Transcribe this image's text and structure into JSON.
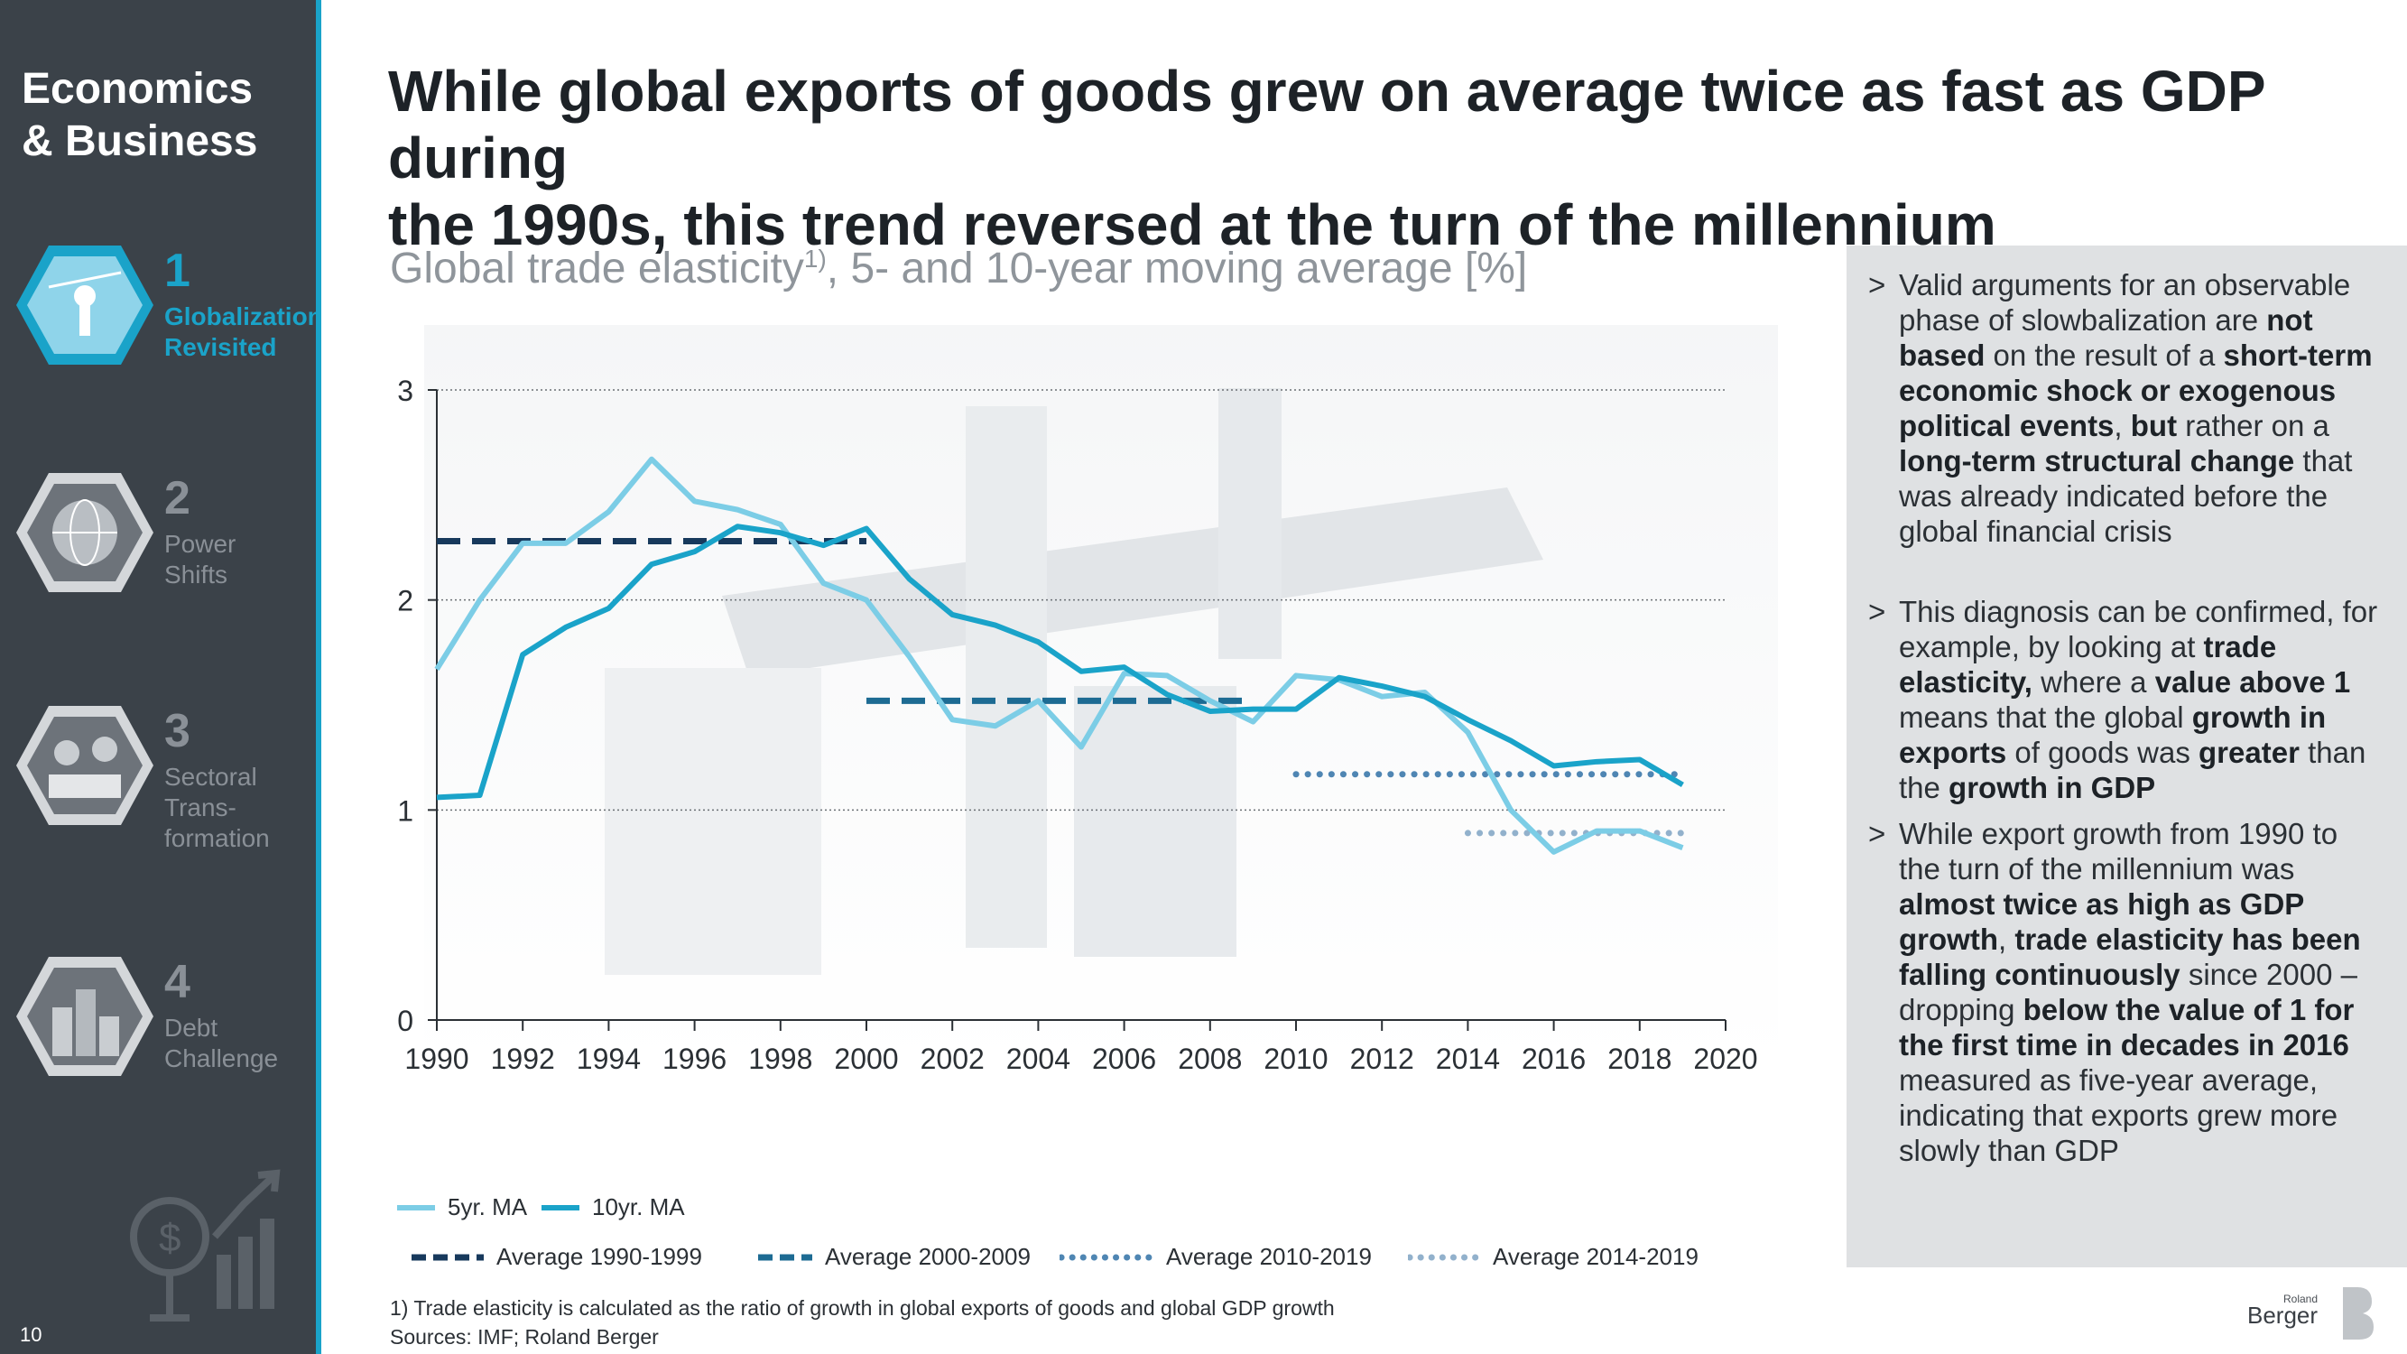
{
  "sidebar": {
    "brand_line1": "Economics",
    "brand_line2": "& Business",
    "items": [
      {
        "num": "1",
        "label1": "Globalization",
        "label2": "Revisited",
        "label3": ""
      },
      {
        "num": "2",
        "label1": "Power",
        "label2": "Shifts",
        "label3": ""
      },
      {
        "num": "3",
        "label1": "Sectoral",
        "label2": "Trans-",
        "label3": "formation"
      },
      {
        "num": "4",
        "label1": "Debt",
        "label2": "Challenge",
        "label3": ""
      }
    ],
    "page_number": "10"
  },
  "headline": {
    "line1": "While global exports of goods grew on average twice as fast as GDP during",
    "line2": "the 1990s, this trend reversed at the turn of the millennium"
  },
  "subtitle": {
    "main": "Global trade elasticity",
    "sup": "1)",
    "rest": ", 5- and 10-year moving average [%]"
  },
  "chart_data": {
    "type": "line",
    "title": "Global trade elasticity, 5- and 10-year moving average [%]",
    "xlim": [
      1990,
      2020
    ],
    "ylim": [
      0,
      3
    ],
    "xticks": [
      "1990",
      "1992",
      "1994",
      "1996",
      "1998",
      "2000",
      "2002",
      "2004",
      "2006",
      "2008",
      "2010",
      "2012",
      "2014",
      "2016",
      "2018",
      "2020"
    ],
    "yticks": [
      "0",
      "1",
      "2",
      "3"
    ],
    "grid": true,
    "series": [
      {
        "name": "5yr. MA",
        "color": "#7ccde6",
        "x": [
          1990,
          1991,
          1992,
          1993,
          1994,
          1995,
          1996,
          1997,
          1998,
          1999,
          2000,
          2001,
          2002,
          2003,
          2004,
          2005,
          2006,
          2007,
          2008,
          2009,
          2010,
          2011,
          2012,
          2013,
          2014,
          2015,
          2016,
          2017,
          2018,
          2019
        ],
        "y": [
          1.67,
          2.0,
          2.27,
          2.27,
          2.42,
          2.67,
          2.47,
          2.43,
          2.36,
          2.08,
          2.0,
          1.73,
          1.43,
          1.4,
          1.52,
          1.3,
          1.65,
          1.64,
          1.52,
          1.42,
          1.64,
          1.62,
          1.54,
          1.56,
          1.37,
          1.0,
          0.8,
          0.9,
          0.9,
          0.82
        ]
      },
      {
        "name": "10yr. MA",
        "color": "#1aa3c9",
        "x": [
          1990,
          1991,
          1992,
          1993,
          1994,
          1995,
          1996,
          1997,
          1998,
          1999,
          2000,
          2001,
          2002,
          2003,
          2004,
          2005,
          2006,
          2007,
          2008,
          2009,
          2010,
          2011,
          2012,
          2013,
          2014,
          2015,
          2016,
          2017,
          2018,
          2019
        ],
        "y": [
          1.06,
          1.07,
          1.74,
          1.87,
          1.96,
          2.17,
          2.23,
          2.35,
          2.32,
          2.26,
          2.34,
          2.1,
          1.93,
          1.88,
          1.8,
          1.66,
          1.68,
          1.55,
          1.47,
          1.48,
          1.48,
          1.63,
          1.59,
          1.54,
          1.43,
          1.33,
          1.21,
          1.23,
          1.24,
          1.12
        ]
      },
      {
        "name": "Average 1990-1999",
        "color": "#17395c",
        "style": "dashed",
        "x": [
          1990,
          2000
        ],
        "y": [
          2.28,
          2.28
        ]
      },
      {
        "name": "Average 2000-2009",
        "color": "#1d6b93",
        "style": "dashed",
        "x": [
          2000,
          2009
        ],
        "y": [
          1.52,
          1.52
        ]
      },
      {
        "name": "Average 2010-2019",
        "color": "#4f86b3",
        "style": "dotted",
        "x": [
          2010,
          2019
        ],
        "y": [
          1.17,
          1.17
        ]
      },
      {
        "name": "Average 2014-2019",
        "color": "#92b1cc",
        "style": "dotted",
        "x": [
          2014,
          2019
        ],
        "y": [
          0.89,
          0.89
        ]
      }
    ]
  },
  "legend": {
    "ma5": "5yr. MA",
    "ma10": "10yr. MA",
    "avg1": "Average 1990-1999",
    "avg2": "Average 2000-2009",
    "avg3": "Average 2010-2019",
    "avg4": "Average 2014-2019"
  },
  "panel": {
    "mark": ">",
    "b1": {
      "t1": "Valid arguments for an observable phase of slowbalization are ",
      "b1": "not based",
      "t2": " on the result of a ",
      "b2": "short-term economic shock or exogenous political events",
      "t3": ", ",
      "b3": "but",
      "t4": " rather on a ",
      "b4": "long-term structural change",
      "t5": " that was already indicated before the global financial crisis"
    },
    "b2": {
      "t1": "This diagnosis can be confirmed, for example, by looking at ",
      "b1": "trade elasticity,",
      "t2": " where a ",
      "b2": "value above 1",
      "t3": " means that the global ",
      "b3": "growth in exports",
      "t4": " of goods was ",
      "b4": "greater",
      "t5": " than the ",
      "b5": "growth in GDP"
    },
    "b3": {
      "t1": "While export growth from 1990 to the turn of the millennium was ",
      "b1": "almost twice as high as GDP growth",
      "t2": ", ",
      "b2": "trade elasticity has been falling continuously",
      "t3": " since 2000 – dropping ",
      "b3": "below the value of 1 for the first time in decades in 2016",
      "t4": " measured as five-year average, indicating that exports grew more slowly than GDP"
    }
  },
  "footnote": "1) Trade elasticity is calculated as the ratio of growth in global exports of goods and global GDP growth",
  "sources": "Sources: IMF; Roland Berger",
  "logo": {
    "small": "Roland",
    "big": "Berger"
  }
}
